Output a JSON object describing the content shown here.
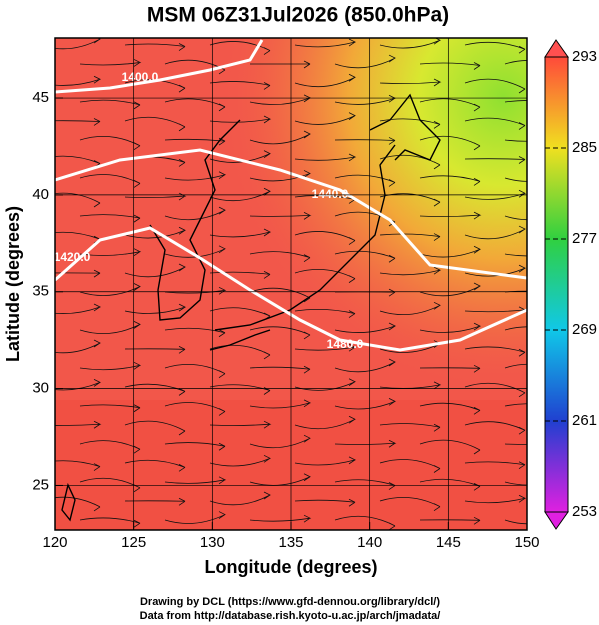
{
  "title": "MSM 06Z31Jul2026 (850.0hPa)",
  "x_axis": {
    "label": "Longitude (degrees)",
    "xlim": [
      120,
      150
    ],
    "xticks": [
      120,
      125,
      130,
      135,
      140,
      145,
      150
    ]
  },
  "y_axis": {
    "label": "Latitude  (degrees)",
    "ylim": [
      22.7,
      48.1
    ],
    "yticks": [
      25,
      30,
      35,
      40,
      45
    ]
  },
  "colorbar": {
    "clim": [
      253,
      293
    ],
    "ticks": [
      253,
      261,
      269,
      277,
      285,
      293
    ]
  },
  "contour_labels": [
    "1400.0",
    "1420.0",
    "1440.0",
    "1480.0"
  ],
  "credits": [
    "Drawing by DCL (https://www.gfd-dennou.org/library/dcl/)",
    "Data from http://database.rish.kyoto-u.ac.jp/arch/jmadata/"
  ]
}
